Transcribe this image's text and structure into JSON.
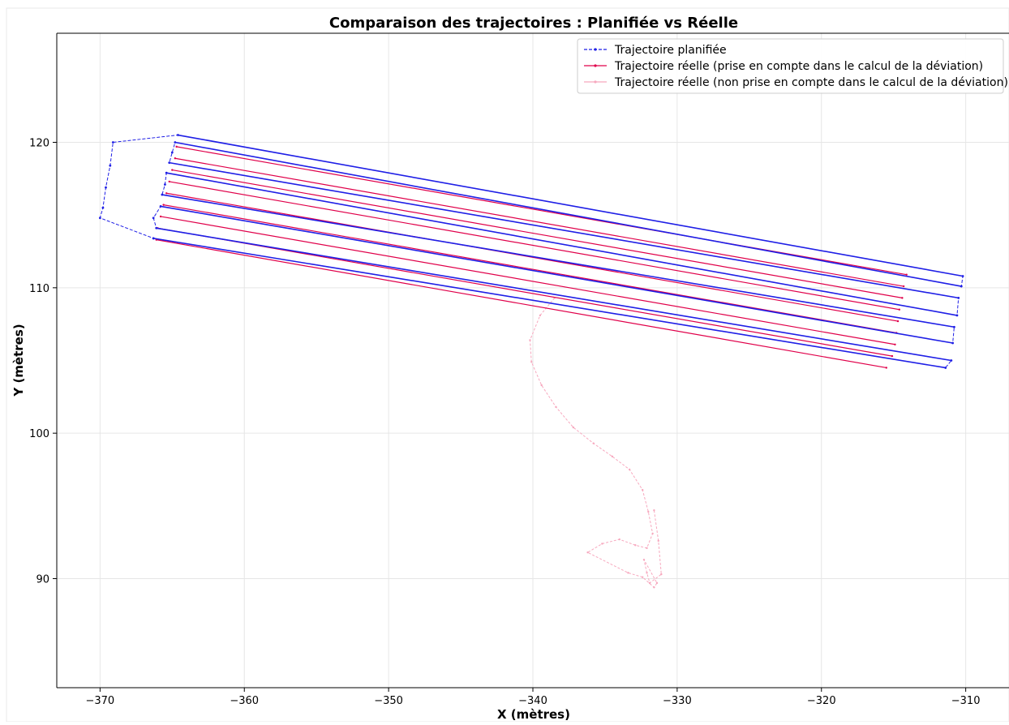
{
  "chart_data": {
    "type": "line",
    "title": "Comparaison des trajectoires : Planifiée vs Réelle",
    "xlabel": "X (mètres)",
    "ylabel": "Y (mètres)",
    "xlim": [
      -373,
      -307
    ],
    "ylim": [
      82.5,
      127.5
    ],
    "xticks": [
      -370,
      -360,
      -350,
      -340,
      -330,
      -320,
      -310
    ],
    "yticks": [
      90,
      100,
      110,
      120
    ],
    "x_tick_labels": [
      "−370",
      "−360",
      "−350",
      "−340",
      "−330",
      "−320",
      "−310"
    ],
    "y_tick_labels": [
      "90",
      "100",
      "110",
      "120"
    ],
    "grid": true,
    "legend_position": "top-right",
    "colors": {
      "planned": "#1f1fe6",
      "actual_used": "#e0004a",
      "actual_excluded": "#f7a8be",
      "grid": "#e6e6e6",
      "axis": "#000000"
    },
    "series": [
      {
        "name": "Trajectoire planifiée",
        "style": "dashed-with-markers",
        "color": "#1f1fe6",
        "x": [
          -366.3,
          -311.4,
          -311.0,
          -366.1,
          -366.3,
          -365.8,
          -310.9,
          -310.8,
          -365.7,
          -365.5,
          -365.4,
          -310.6,
          -310.5,
          -365.2,
          -365.0,
          -364.8,
          -310.3,
          -310.2,
          -364.6,
          -369.1,
          -369.3,
          -369.6,
          -369.8,
          -370.0,
          -366.3
        ],
        "y": [
          113.4,
          104.5,
          105.0,
          114.1,
          114.8,
          115.6,
          106.2,
          107.3,
          116.4,
          117.1,
          117.9,
          108.1,
          109.3,
          118.6,
          119.3,
          120.0,
          110.1,
          110.8,
          120.5,
          120.0,
          118.4,
          116.9,
          115.5,
          114.8,
          113.4
        ]
      },
      {
        "name": "Trajectoire réelle (prise en compte dans le calcul de la déviation)",
        "style": "solid-with-markers",
        "color": "#e0004a",
        "lines": [
          {
            "x": [
              -366.1,
              -315.5
            ],
            "y": [
              113.3,
              104.5
            ]
          },
          {
            "x": [
              -366.0,
              -315.1
            ],
            "y": [
              114.1,
              105.3
            ]
          },
          {
            "x": [
              -365.8,
              -314.9
            ],
            "y": [
              114.9,
              106.1
            ]
          },
          {
            "x": [
              -365.6,
              -314.8
            ],
            "y": [
              115.7,
              106.9
            ]
          },
          {
            "x": [
              -365.4,
              -314.7
            ],
            "y": [
              116.5,
              107.7
            ]
          },
          {
            "x": [
              -365.2,
              -314.6
            ],
            "y": [
              117.3,
              108.5
            ]
          },
          {
            "x": [
              -365.0,
              -314.4
            ],
            "y": [
              118.1,
              109.3
            ]
          },
          {
            "x": [
              -364.8,
              -314.3
            ],
            "y": [
              118.9,
              110.1
            ]
          },
          {
            "x": [
              -364.7,
              -314.1
            ],
            "y": [
              119.7,
              110.9
            ]
          }
        ]
      },
      {
        "name": "Trajectoire réelle (non prise en compte dans le calcul de la déviation)",
        "style": "thin-with-markers",
        "color": "#f7a8be",
        "x": [
          -338.5,
          -339.5,
          -340.2,
          -340.1,
          -339.4,
          -338.4,
          -337.2,
          -335.8,
          -334.5,
          -333.3,
          -332.4,
          -332.0,
          -331.7,
          -332.1,
          -332.9,
          -334.0,
          -335.2,
          -336.2,
          -333.4,
          -332.4,
          -331.6,
          -331.4,
          -332.3,
          -332.1,
          -331.9,
          -331.1,
          -331.3,
          -331.6
        ],
        "y": [
          109.3,
          108.1,
          106.4,
          104.9,
          103.3,
          101.8,
          100.4,
          99.3,
          98.4,
          97.5,
          96.1,
          94.6,
          93.1,
          92.1,
          92.3,
          92.7,
          92.4,
          91.8,
          90.4,
          90.1,
          89.4,
          89.7,
          91.3,
          90.4,
          89.7,
          90.3,
          92.6,
          94.7
        ]
      }
    ]
  }
}
